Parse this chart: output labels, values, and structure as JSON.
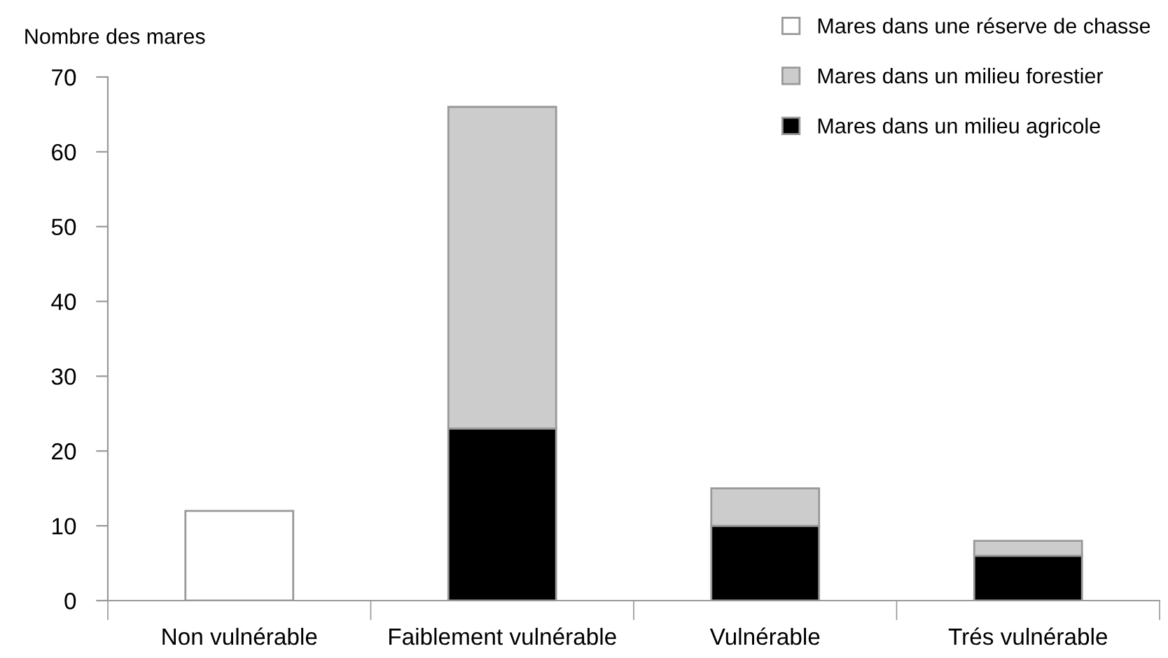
{
  "chart_data": {
    "type": "bar",
    "stacked": true,
    "ylabel": "Nombre des mares",
    "categories": [
      "Non vulnérable",
      "Faiblement vulnérable",
      "Vulnérable",
      "Trés vulnérable"
    ],
    "series": [
      {
        "name": "Mares dans un milieu agricole",
        "color": "#000000",
        "values": [
          null,
          23,
          10,
          6
        ]
      },
      {
        "name": "Mares dans un milieu forestier",
        "color": "#cccccc",
        "values": [
          null,
          43,
          5,
          2
        ]
      },
      {
        "name": "Mares dans une réserve de chasse",
        "color": "#ffffff",
        "values": [
          12,
          null,
          null,
          null
        ]
      }
    ],
    "ylim": [
      0,
      70
    ],
    "yticks": [
      0,
      10,
      20,
      30,
      40,
      50,
      60,
      70
    ],
    "grid": false,
    "legend": "top right"
  }
}
